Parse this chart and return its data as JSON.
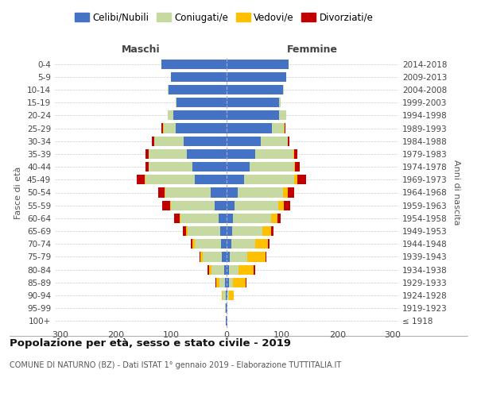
{
  "age_groups": [
    "100+",
    "95-99",
    "90-94",
    "85-89",
    "80-84",
    "75-79",
    "70-74",
    "65-69",
    "60-64",
    "55-59",
    "50-54",
    "45-49",
    "40-44",
    "35-39",
    "30-34",
    "25-29",
    "20-24",
    "15-19",
    "10-14",
    "5-9",
    "0-4"
  ],
  "birth_years": [
    "≤ 1918",
    "1919-1923",
    "1924-1928",
    "1929-1933",
    "1934-1938",
    "1939-1943",
    "1944-1948",
    "1949-1953",
    "1954-1958",
    "1959-1963",
    "1964-1968",
    "1969-1973",
    "1974-1978",
    "1979-1983",
    "1984-1988",
    "1989-1993",
    "1994-1998",
    "1999-2003",
    "2004-2008",
    "2009-2013",
    "2014-2018"
  ],
  "males": {
    "celibi": [
      1,
      1,
      2,
      3,
      5,
      8,
      10,
      12,
      15,
      22,
      28,
      58,
      62,
      72,
      78,
      92,
      96,
      90,
      105,
      100,
      118
    ],
    "coniugati": [
      0,
      2,
      5,
      10,
      22,
      35,
      48,
      58,
      68,
      78,
      82,
      88,
      78,
      68,
      52,
      22,
      10,
      2,
      1,
      0,
      0
    ],
    "vedovi": [
      0,
      0,
      2,
      5,
      5,
      4,
      3,
      3,
      2,
      2,
      2,
      2,
      1,
      1,
      1,
      1,
      0,
      0,
      0,
      0,
      0
    ],
    "divorziati": [
      0,
      0,
      0,
      2,
      2,
      2,
      4,
      6,
      10,
      14,
      12,
      14,
      6,
      5,
      4,
      2,
      0,
      0,
      0,
      0,
      0
    ]
  },
  "females": {
    "nubili": [
      1,
      1,
      2,
      4,
      5,
      6,
      8,
      10,
      12,
      15,
      20,
      32,
      42,
      52,
      62,
      82,
      95,
      95,
      102,
      108,
      112
    ],
    "coniugate": [
      0,
      0,
      3,
      8,
      16,
      32,
      44,
      54,
      68,
      78,
      82,
      90,
      80,
      68,
      48,
      22,
      12,
      2,
      1,
      0,
      0
    ],
    "vedove": [
      0,
      1,
      8,
      22,
      28,
      32,
      22,
      16,
      12,
      10,
      8,
      6,
      2,
      2,
      1,
      1,
      0,
      0,
      0,
      0,
      0
    ],
    "divorziate": [
      0,
      0,
      0,
      2,
      2,
      2,
      3,
      4,
      6,
      12,
      12,
      16,
      8,
      6,
      3,
      1,
      0,
      0,
      0,
      0,
      0
    ]
  },
  "colors": {
    "celibi": "#4472c4",
    "coniugati": "#c5d9a0",
    "vedovi": "#ffc000",
    "divorziati": "#c00000"
  },
  "legend_labels": [
    "Celibi/Nubili",
    "Coniugati/e",
    "Vedovi/e",
    "Divorziati/e"
  ],
  "title": "Popolazione per età, sesso e stato civile - 2019",
  "subtitle": "COMUNE DI NATURNO (BZ) - Dati ISTAT 1° gennaio 2019 - Elaborazione TUTTITALIA.IT",
  "xlabel_left": "Maschi",
  "xlabel_right": "Femmine",
  "ylabel_left": "Fasce di età",
  "ylabel_right": "Anni di nascita",
  "xlim": 310,
  "background_color": "#ffffff"
}
